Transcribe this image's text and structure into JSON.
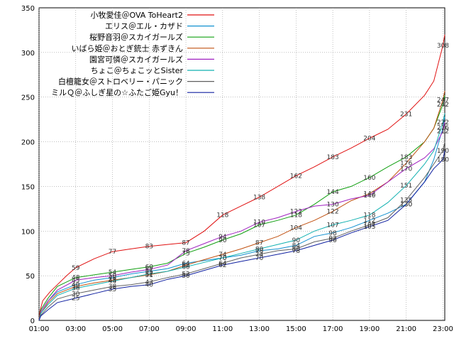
{
  "chart_data": {
    "type": "line",
    "title": "",
    "xlabel": "",
    "ylabel": "",
    "xlim": [
      1,
      23.1
    ],
    "ylim": [
      0,
      350
    ],
    "yticks": [
      0,
      50,
      100,
      150,
      200,
      250,
      300,
      350
    ],
    "xticks": [
      1,
      3,
      5,
      7,
      9,
      11,
      13,
      15,
      17,
      19,
      21,
      23
    ],
    "xtick_labels": [
      "01:00",
      "03:00",
      "05:00",
      "07:00",
      "09:00",
      "11:00",
      "13:00",
      "15:00",
      "17:00",
      "19:00",
      "21:00",
      "23:00"
    ],
    "grid": true,
    "legend_position": "top-left",
    "series": [
      {
        "name": "小牧愛佳＠OVA ToHeart2",
        "color": "#e01010",
        "points": [
          [
            1,
            0
          ],
          [
            1.05,
            10
          ],
          [
            1.2,
            22
          ],
          [
            1.6,
            32
          ],
          [
            2,
            40
          ],
          [
            2.5,
            50
          ],
          [
            3,
            59
          ],
          [
            4,
            69
          ],
          [
            5,
            77
          ],
          [
            6,
            80
          ],
          [
            7,
            83
          ],
          [
            8,
            85
          ],
          [
            9,
            87
          ],
          [
            10,
            100
          ],
          [
            11,
            118
          ],
          [
            12,
            128
          ],
          [
            13,
            138
          ],
          [
            14,
            150
          ],
          [
            15,
            162
          ],
          [
            16,
            172
          ],
          [
            17,
            183
          ],
          [
            18,
            193
          ],
          [
            19,
            204
          ],
          [
            20,
            214
          ],
          [
            21,
            231
          ],
          [
            22,
            252
          ],
          [
            22.5,
            268
          ],
          [
            23,
            308
          ],
          [
            23.1,
            320
          ]
        ],
        "labels": [
          [
            3,
            59
          ],
          [
            5,
            77
          ],
          [
            7,
            83
          ],
          [
            9,
            87
          ],
          [
            11,
            118
          ],
          [
            13,
            138
          ],
          [
            15,
            162
          ],
          [
            17,
            183
          ],
          [
            19,
            204
          ],
          [
            21,
            231
          ],
          [
            23,
            308
          ]
        ]
      },
      {
        "name": "エリス＠エル・カザド",
        "color": "#1090d0",
        "points": [
          [
            1,
            0
          ],
          [
            1.1,
            10
          ],
          [
            1.5,
            22
          ],
          [
            2,
            32
          ],
          [
            3,
            40
          ],
          [
            4,
            45
          ],
          [
            5,
            48
          ],
          [
            6,
            52
          ],
          [
            7,
            55
          ],
          [
            8,
            58
          ],
          [
            9,
            64
          ],
          [
            10,
            67
          ],
          [
            11,
            70
          ],
          [
            12,
            73
          ],
          [
            13,
            78
          ],
          [
            14,
            80
          ],
          [
            15,
            84
          ],
          [
            16,
            94
          ],
          [
            17,
            98
          ],
          [
            18,
            104
          ],
          [
            19,
            112
          ],
          [
            20,
            120
          ],
          [
            21,
            130
          ],
          [
            22,
            155
          ],
          [
            22.5,
            180
          ],
          [
            23,
            216
          ],
          [
            23.1,
            228
          ]
        ],
        "labels": [
          [
            3,
            40
          ],
          [
            5,
            48
          ],
          [
            7,
            55
          ],
          [
            9,
            64
          ],
          [
            11,
            70
          ],
          [
            13,
            78
          ],
          [
            15,
            84
          ],
          [
            17,
            98
          ],
          [
            19,
            112
          ],
          [
            21,
            130
          ],
          [
            23,
            216
          ]
        ]
      },
      {
        "name": "桜野音羽＠スカイガールズ",
        "color": "#10a010",
        "points": [
          [
            1,
            0
          ],
          [
            1.1,
            12
          ],
          [
            1.5,
            25
          ],
          [
            2,
            38
          ],
          [
            3,
            48
          ],
          [
            4,
            51
          ],
          [
            5,
            54
          ],
          [
            6,
            57
          ],
          [
            7,
            60
          ],
          [
            8,
            64
          ],
          [
            9,
            75
          ],
          [
            10,
            82
          ],
          [
            11,
            90
          ],
          [
            12,
            97
          ],
          [
            13,
            107
          ],
          [
            14,
            112
          ],
          [
            15,
            118
          ],
          [
            16,
            130
          ],
          [
            17,
            144
          ],
          [
            18,
            150
          ],
          [
            19,
            160
          ],
          [
            20,
            172
          ],
          [
            21,
            183
          ],
          [
            22,
            200
          ],
          [
            22.5,
            215
          ],
          [
            23,
            242
          ],
          [
            23.1,
            252
          ]
        ],
        "labels": [
          [
            3,
            48
          ],
          [
            5,
            54
          ],
          [
            7,
            60
          ],
          [
            9,
            75
          ],
          [
            11,
            90
          ],
          [
            13,
            107
          ],
          [
            15,
            118
          ],
          [
            17,
            144
          ],
          [
            19,
            160
          ],
          [
            21,
            183
          ],
          [
            23,
            242
          ]
        ]
      },
      {
        "name": "いばら姫＠おとぎ銃士 赤ずきん",
        "color": "#c05010",
        "points": [
          [
            1,
            0
          ],
          [
            1.1,
            8
          ],
          [
            1.5,
            20
          ],
          [
            2,
            30
          ],
          [
            3,
            38
          ],
          [
            4,
            42
          ],
          [
            5,
            45
          ],
          [
            6,
            48
          ],
          [
            7,
            51
          ],
          [
            8,
            55
          ],
          [
            9,
            62
          ],
          [
            10,
            68
          ],
          [
            11,
            74
          ],
          [
            12,
            80
          ],
          [
            13,
            87
          ],
          [
            14,
            94
          ],
          [
            15,
            104
          ],
          [
            16,
            112
          ],
          [
            17,
            122
          ],
          [
            18,
            134
          ],
          [
            19,
            142
          ],
          [
            20,
            155
          ],
          [
            21,
            176
          ],
          [
            22,
            200
          ],
          [
            22.5,
            215
          ],
          [
            23,
            247
          ],
          [
            23.1,
            257
          ]
        ],
        "labels": [
          [
            3,
            38
          ],
          [
            5,
            45
          ],
          [
            7,
            51
          ],
          [
            9,
            62
          ],
          [
            11,
            74
          ],
          [
            13,
            87
          ],
          [
            15,
            104
          ],
          [
            17,
            122
          ],
          [
            19,
            142
          ],
          [
            21,
            176
          ],
          [
            23,
            247
          ]
        ]
      },
      {
        "name": "園宮可憐＠スカイガールズ",
        "color": "#a020c0",
        "points": [
          [
            1,
            0
          ],
          [
            1.1,
            10
          ],
          [
            1.5,
            22
          ],
          [
            2,
            34
          ],
          [
            3,
            45
          ],
          [
            4,
            48
          ],
          [
            5,
            50
          ],
          [
            6,
            54
          ],
          [
            7,
            57
          ],
          [
            8,
            62
          ],
          [
            9,
            78
          ],
          [
            10,
            86
          ],
          [
            11,
            94
          ],
          [
            12,
            100
          ],
          [
            13,
            110
          ],
          [
            14,
            115
          ],
          [
            15,
            122
          ],
          [
            16,
            128
          ],
          [
            17,
            130
          ],
          [
            18,
            136
          ],
          [
            19,
            140
          ],
          [
            20,
            155
          ],
          [
            21,
            170
          ],
          [
            22,
            182
          ],
          [
            22.5,
            192
          ],
          [
            23,
            212
          ],
          [
            23.1,
            222
          ]
        ],
        "labels": [
          [
            3,
            45
          ],
          [
            5,
            50
          ],
          [
            7,
            57
          ],
          [
            9,
            78
          ],
          [
            11,
            94
          ],
          [
            13,
            110
          ],
          [
            15,
            122
          ],
          [
            17,
            130
          ],
          [
            19,
            140
          ],
          [
            21,
            170
          ],
          [
            23,
            212
          ]
        ]
      },
      {
        "name": "ちょこ＠ちょこッとSister",
        "color": "#10b0b0",
        "points": [
          [
            1,
            0
          ],
          [
            1.1,
            8
          ],
          [
            1.5,
            18
          ],
          [
            2,
            28
          ],
          [
            3,
            36
          ],
          [
            4,
            40
          ],
          [
            5,
            44
          ],
          [
            6,
            48
          ],
          [
            7,
            52
          ],
          [
            8,
            55
          ],
          [
            9,
            60
          ],
          [
            10,
            65
          ],
          [
            11,
            70
          ],
          [
            12,
            75
          ],
          [
            13,
            80
          ],
          [
            14,
            85
          ],
          [
            15,
            90
          ],
          [
            16,
            100
          ],
          [
            17,
            107
          ],
          [
            18,
            112
          ],
          [
            19,
            118
          ],
          [
            20,
            132
          ],
          [
            21,
            151
          ],
          [
            22,
            175
          ],
          [
            22.5,
            190
          ],
          [
            23,
            222
          ],
          [
            23.1,
            232
          ]
        ],
        "labels": [
          [
            3,
            36
          ],
          [
            5,
            44
          ],
          [
            7,
            52
          ],
          [
            9,
            60
          ],
          [
            11,
            70
          ],
          [
            13,
            80
          ],
          [
            15,
            90
          ],
          [
            17,
            107
          ],
          [
            19,
            118
          ],
          [
            21,
            151
          ],
          [
            23,
            222
          ]
        ]
      },
      {
        "name": "白檀籠女＠ストロベリー・パニック",
        "color": "#606060",
        "points": [
          [
            1,
            0
          ],
          [
            1.1,
            6
          ],
          [
            1.5,
            15
          ],
          [
            2,
            24
          ],
          [
            3,
            30
          ],
          [
            4,
            34
          ],
          [
            5,
            38
          ],
          [
            6,
            40
          ],
          [
            7,
            43
          ],
          [
            8,
            48
          ],
          [
            9,
            52
          ],
          [
            10,
            58
          ],
          [
            11,
            64
          ],
          [
            12,
            70
          ],
          [
            13,
            74
          ],
          [
            14,
            78
          ],
          [
            15,
            80
          ],
          [
            16,
            88
          ],
          [
            17,
            92
          ],
          [
            18,
            100
          ],
          [
            19,
            107
          ],
          [
            20,
            115
          ],
          [
            21,
            135
          ],
          [
            22,
            160
          ],
          [
            22.5,
            175
          ],
          [
            23,
            190
          ],
          [
            23.1,
            200
          ]
        ],
        "labels": [
          [
            3,
            30
          ],
          [
            5,
            38
          ],
          [
            7,
            43
          ],
          [
            9,
            52
          ],
          [
            11,
            64
          ],
          [
            13,
            74
          ],
          [
            15,
            80
          ],
          [
            17,
            92
          ],
          [
            19,
            107
          ],
          [
            21,
            135
          ],
          [
            23,
            190
          ]
        ]
      },
      {
        "name": "ミルＱ＠ふしぎ星の☆ふたご姫Gyu！",
        "color": "#1020a0",
        "points": [
          [
            1,
            0
          ],
          [
            1.1,
            5
          ],
          [
            1.5,
            12
          ],
          [
            2,
            20
          ],
          [
            3,
            25
          ],
          [
            4,
            30
          ],
          [
            5,
            35
          ],
          [
            6,
            38
          ],
          [
            7,
            40
          ],
          [
            8,
            46
          ],
          [
            9,
            50
          ],
          [
            10,
            56
          ],
          [
            11,
            62
          ],
          [
            12,
            66
          ],
          [
            13,
            70
          ],
          [
            14,
            74
          ],
          [
            15,
            78
          ],
          [
            16,
            84
          ],
          [
            17,
            90
          ],
          [
            18,
            98
          ],
          [
            19,
            105
          ],
          [
            20,
            112
          ],
          [
            21,
            130
          ],
          [
            22,
            155
          ],
          [
            22.5,
            170
          ],
          [
            23,
            180
          ],
          [
            23.1,
            190
          ]
        ],
        "labels": [
          [
            3,
            25
          ],
          [
            5,
            35
          ],
          [
            7,
            40
          ],
          [
            9,
            50
          ],
          [
            11,
            62
          ],
          [
            13,
            70
          ],
          [
            15,
            78
          ],
          [
            17,
            90
          ],
          [
            19,
            105
          ],
          [
            21,
            130
          ],
          [
            23,
            180
          ]
        ]
      }
    ]
  }
}
